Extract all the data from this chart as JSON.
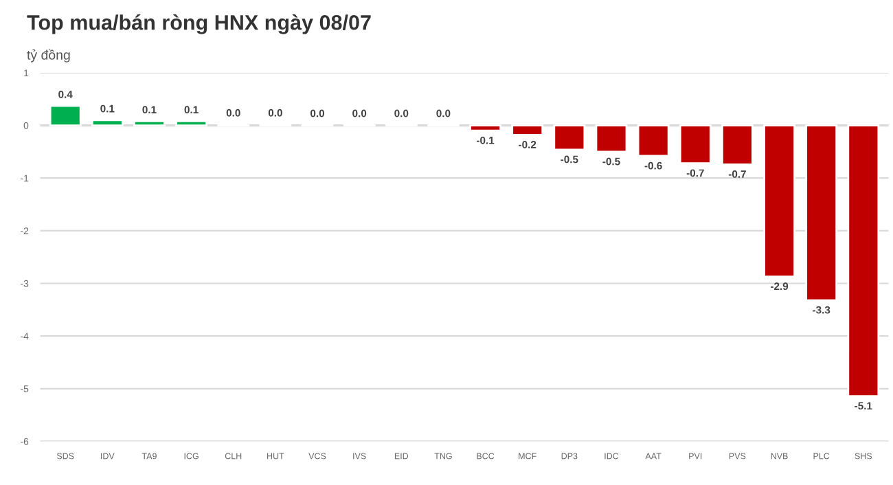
{
  "chart_data": {
    "type": "bar",
    "title": "Top mua/bán ròng HNX ngày 08/07",
    "subtitle": "tỷ đồng",
    "categories": [
      "SDS",
      "IDV",
      "TA9",
      "ICG",
      "CLH",
      "HUT",
      "VCS",
      "IVS",
      "EID",
      "TNG",
      "BCC",
      "MCF",
      "DP3",
      "IDC",
      "AAT",
      "PVI",
      "PVS",
      "NVB",
      "PLC",
      "SHS"
    ],
    "values": [
      0.37,
      0.1,
      0.08,
      0.08,
      0.02,
      0.02,
      0.01,
      0.01,
      0.01,
      0.01,
      -0.1,
      -0.18,
      -0.46,
      -0.5,
      -0.58,
      -0.72,
      -0.74,
      -2.87,
      -3.32,
      -5.14
    ],
    "value_labels": [
      "0.4",
      "0.1",
      "0.1",
      "0.1",
      "0.0",
      "0.0",
      "0.0",
      "0.0",
      "0.0",
      "0.0",
      "-0.1",
      "-0.2",
      "-0.5",
      "-0.5",
      "-0.6",
      "-0.7",
      "-0.7",
      "-2.9",
      "-3.3",
      "-5.1"
    ],
    "colors": [
      "#00b050",
      "#00b050",
      "#00b050",
      "#00b050",
      "#00b050",
      "#00b050",
      "#00b050",
      "#00b050",
      "#00b050",
      "#00b050",
      "#c00000",
      "#c00000",
      "#c00000",
      "#c00000",
      "#c00000",
      "#c00000",
      "#c00000",
      "#c00000",
      "#c00000",
      "#c00000"
    ],
    "ylim": [
      -6,
      1
    ],
    "yticks": [
      1,
      0,
      -1,
      -2,
      -3,
      -4,
      -5,
      -6
    ],
    "grid": "y",
    "legend": false
  }
}
